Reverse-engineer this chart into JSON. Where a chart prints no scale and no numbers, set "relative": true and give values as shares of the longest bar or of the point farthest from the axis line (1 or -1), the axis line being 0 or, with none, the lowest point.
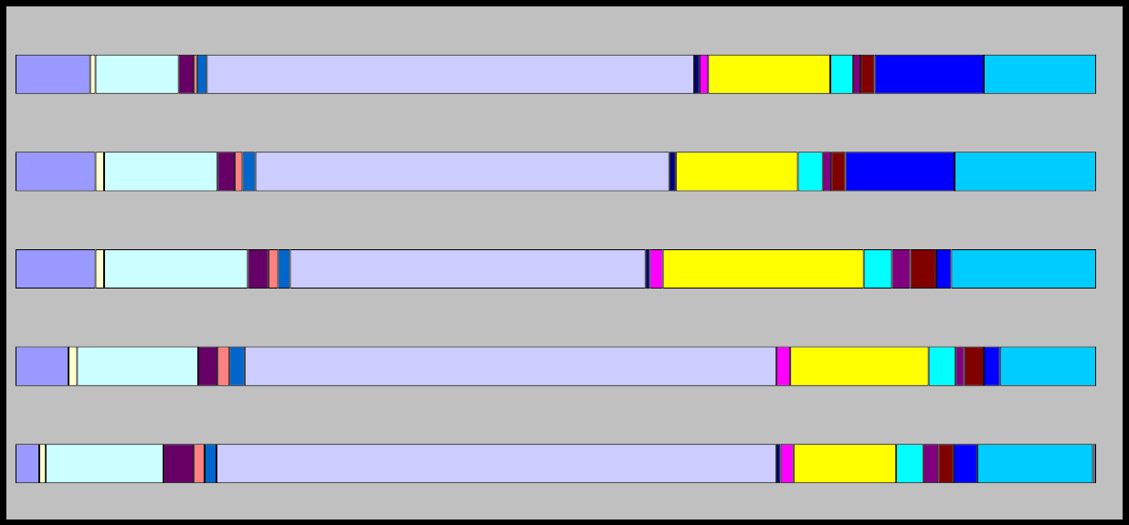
{
  "chart_data": {
    "type": "bar",
    "orientation": "horizontal",
    "stacked": true,
    "relative": true,
    "categories": [
      null,
      null,
      null,
      null,
      null
    ],
    "series": [
      {
        "color": "#9999ff",
        "values": [
          0.069,
          0.074,
          0.074,
          0.049,
          0.022
        ]
      },
      {
        "color": "#ffffcc",
        "values": [
          0.005,
          0.008,
          0.008,
          0.008,
          0.006
        ]
      },
      {
        "color": "#ccffff",
        "values": [
          0.077,
          0.105,
          0.133,
          0.112,
          0.109
        ]
      },
      {
        "color": "#660066",
        "values": [
          0.014,
          0.016,
          0.019,
          0.018,
          0.028
        ]
      },
      {
        "color": "#ff8080",
        "values": [
          0.003,
          0.007,
          0.009,
          0.011,
          0.01
        ]
      },
      {
        "color": "#0066cc",
        "values": [
          0.009,
          0.012,
          0.011,
          0.014,
          0.011
        ]
      },
      {
        "color": "#ccccff",
        "values": [
          0.451,
          0.383,
          0.329,
          0.492,
          0.518
        ]
      },
      {
        "color": "#000080",
        "values": [
          0.005,
          0.006,
          0.004,
          null,
          0.004
        ]
      },
      {
        "color": "#ff00ff",
        "values": [
          0.008,
          null,
          0.012,
          0.013,
          0.012
        ]
      },
      {
        "color": "#ffff00",
        "values": [
          0.113,
          0.113,
          0.186,
          0.128,
          0.095
        ]
      },
      {
        "color": "#00ffff",
        "values": [
          0.021,
          0.023,
          0.026,
          0.025,
          0.025
        ]
      },
      {
        "color": "#800080",
        "values": [
          0.007,
          0.008,
          0.017,
          0.008,
          0.014
        ]
      },
      {
        "color": "#800000",
        "values": [
          0.013,
          0.013,
          0.024,
          0.018,
          0.014
        ]
      },
      {
        "color": "#0000ff",
        "values": [
          0.101,
          0.101,
          0.014,
          0.015,
          0.022
        ]
      },
      {
        "color": "#00ccff",
        "values": [
          0.104,
          0.131,
          0.134,
          0.089,
          0.107
        ]
      },
      {
        "color": "#666699",
        "values": [
          null,
          null,
          null,
          null,
          0.003
        ]
      }
    ]
  }
}
